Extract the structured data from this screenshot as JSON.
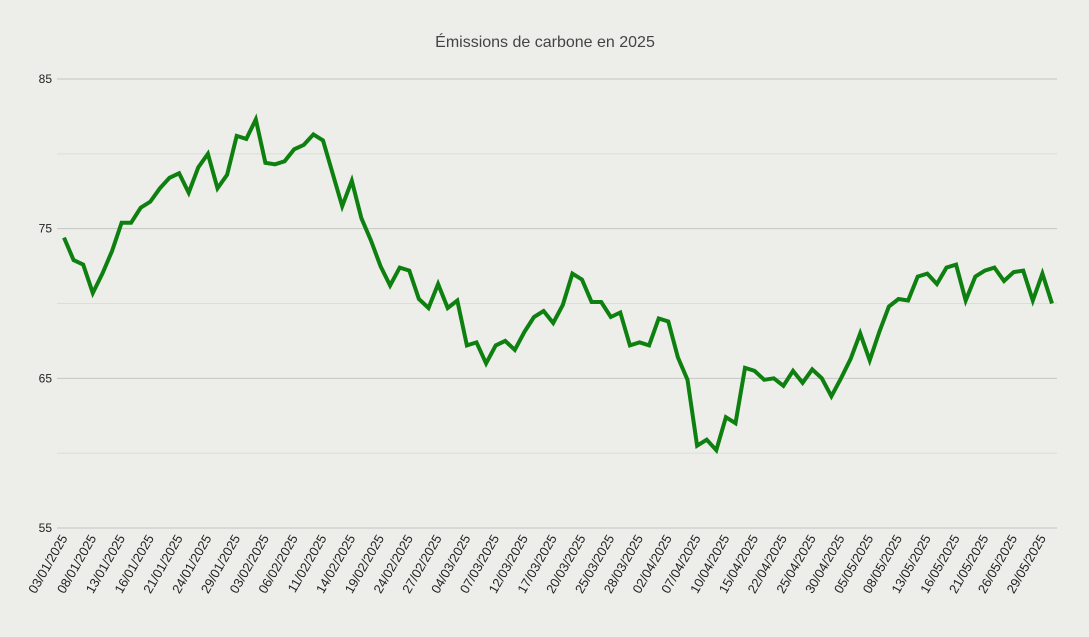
{
  "chart_data": {
    "type": "line",
    "title": "Émissions de carbone en 2025",
    "xlabel": "",
    "ylabel": "",
    "ylim": [
      55,
      85
    ],
    "yticks": [
      55,
      65,
      75,
      85
    ],
    "grid": true,
    "legend": "none",
    "colors": {
      "background": "#ededea",
      "line": "#0e8010",
      "major_grid": "#c4c4c0",
      "minor_grid": "#dcdcd8"
    },
    "x_tick_labels": [
      "03/01/2025",
      "08/01/2025",
      "13/01/2025",
      "16/01/2025",
      "21/01/2025",
      "24/01/2025",
      "29/01/2025",
      "03/02/2025",
      "06/02/2025",
      "11/02/2025",
      "14/02/2025",
      "19/02/2025",
      "24/02/2025",
      "27/02/2025",
      "04/03/2025",
      "07/03/2025",
      "12/03/2025",
      "17/03/2025",
      "20/03/2025",
      "25/03/2025",
      "28/03/2025",
      "02/04/2025",
      "07/04/2025",
      "10/04/2025",
      "15/04/2025",
      "22/04/2025",
      "25/04/2025",
      "30/04/2025",
      "05/05/2025",
      "08/05/2025",
      "13/05/2025",
      "16/05/2025",
      "21/05/2025",
      "26/05/2025",
      "29/05/2025"
    ],
    "series": [
      {
        "values": [
          74.4,
          72.9,
          72.6,
          70.7,
          72.0,
          73.5,
          75.4,
          75.4,
          76.4,
          76.8,
          77.7,
          78.4,
          78.7,
          77.4,
          79.1,
          80.0,
          77.7,
          78.6,
          81.2,
          81.0,
          82.3,
          79.4,
          79.3,
          79.5,
          80.3,
          80.6,
          81.3,
          80.9,
          78.7,
          76.5,
          78.2,
          75.7,
          74.2,
          72.5,
          71.2,
          72.4,
          72.2,
          70.3,
          69.7,
          71.3,
          69.7,
          70.2,
          67.2,
          67.4,
          66.0,
          67.2,
          67.5,
          66.9,
          68.1,
          69.1,
          69.5,
          68.7,
          69.9,
          72.0,
          71.6,
          70.1,
          70.1,
          69.1,
          69.4,
          67.2,
          67.4,
          67.2,
          69.0,
          68.8,
          66.4,
          64.9,
          60.5,
          60.9,
          60.2,
          62.4,
          62.0,
          65.7,
          65.5,
          64.9,
          65.0,
          64.5,
          65.5,
          64.7,
          65.6,
          65.0,
          63.8,
          65.0,
          66.3,
          68.0,
          66.2,
          68.1,
          69.8,
          70.3,
          70.2,
          71.8,
          72.0,
          71.3,
          72.4,
          72.6,
          70.2,
          71.8,
          72.2,
          72.4,
          71.5,
          72.1,
          72.2,
          70.2,
          72.0,
          70.0
        ]
      }
    ]
  }
}
